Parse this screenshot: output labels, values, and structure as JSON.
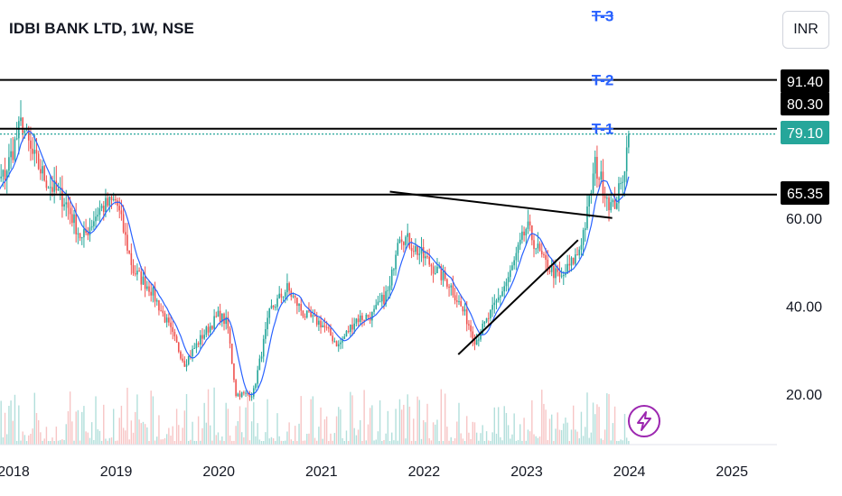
{
  "header": {
    "symbol_title": "IDBI BANK LTD, 1W, NSE",
    "currency_label": "INR"
  },
  "icons": {
    "action_badge": "lightning-bolt-icon"
  },
  "colors": {
    "up": "#26a69a",
    "down": "#ef5350",
    "ma": "#2962ff",
    "level_line": "#000000",
    "dotted_line": "#26a69a",
    "target_label": "#2962ff",
    "volume_up": "#b2dfdb",
    "volume_down": "#f7c5c5",
    "price_tag_dark": "#000000",
    "price_tag_last": "#26a69a",
    "badge": "#9c27b0"
  },
  "chart_data": {
    "type": "candlestick",
    "x_axis": {
      "ticks": [
        "2018",
        "2019",
        "2020",
        "2021",
        "2022",
        "2023",
        "2024",
        "2025"
      ]
    },
    "y_axis": {
      "ticks": [
        "20.00",
        "40.00",
        "60.00"
      ],
      "scale": "linear",
      "range": [
        9,
        101
      ]
    },
    "price_tags": [
      {
        "label": "91.40",
        "value": 91.4,
        "style": "dark"
      },
      {
        "label": "80.30",
        "value": 80.3,
        "style": "dark"
      },
      {
        "label": "79.10",
        "value": 79.1,
        "style": "last"
      },
      {
        "label": "65.35",
        "value": 65.35,
        "style": "dark"
      }
    ],
    "horizontal_levels": [
      91.4,
      80.3,
      65.35
    ],
    "last_price_line": 79.1,
    "target_labels": [
      {
        "label": "T-3",
        "value": 106
      },
      {
        "label": "T-2",
        "value": 91.4
      },
      {
        "label": "T-1",
        "value": 80.3
      }
    ],
    "trendlines": [
      {
        "from": [
          "2021-09",
          66
        ],
        "to": [
          "2023-11",
          60
        ]
      },
      {
        "from": [
          "2022-05",
          29
        ],
        "to": [
          "2023-07",
          55
        ]
      }
    ],
    "price_anchors": [
      [
        "2017-09",
        62
      ],
      [
        "2017-12",
        70
      ],
      [
        "2018-02",
        82
      ],
      [
        "2018-03",
        75
      ],
      [
        "2018-05",
        68
      ],
      [
        "2018-07",
        64
      ],
      [
        "2018-09",
        55
      ],
      [
        "2018-11",
        62
      ],
      [
        "2019-01",
        64
      ],
      [
        "2019-03",
        48
      ],
      [
        "2019-05",
        44
      ],
      [
        "2019-07",
        36
      ],
      [
        "2019-09",
        27
      ],
      [
        "2019-11",
        33
      ],
      [
        "2020-01",
        38
      ],
      [
        "2020-02",
        36
      ],
      [
        "2020-03",
        20
      ],
      [
        "2020-05",
        20
      ],
      [
        "2020-07",
        39
      ],
      [
        "2020-09",
        44
      ],
      [
        "2020-11",
        38
      ],
      [
        "2021-01",
        36
      ],
      [
        "2021-03",
        31
      ],
      [
        "2021-05",
        37
      ],
      [
        "2021-07",
        38
      ],
      [
        "2021-09",
        44
      ],
      [
        "2021-10",
        57
      ],
      [
        "2021-12",
        53
      ],
      [
        "2022-02",
        49
      ],
      [
        "2022-04",
        45
      ],
      [
        "2022-06",
        37
      ],
      [
        "2022-07",
        32
      ],
      [
        "2022-09",
        39
      ],
      [
        "2022-11",
        47
      ],
      [
        "2023-01",
        58
      ],
      [
        "2023-03",
        50
      ],
      [
        "2023-05",
        46
      ],
      [
        "2023-07",
        52
      ],
      [
        "2023-08",
        60
      ],
      [
        "2023-09",
        72
      ],
      [
        "2023-10",
        67
      ],
      [
        "2023-11",
        62
      ],
      [
        "2023-12",
        67
      ],
      [
        "2024-01",
        79.1
      ]
    ]
  }
}
